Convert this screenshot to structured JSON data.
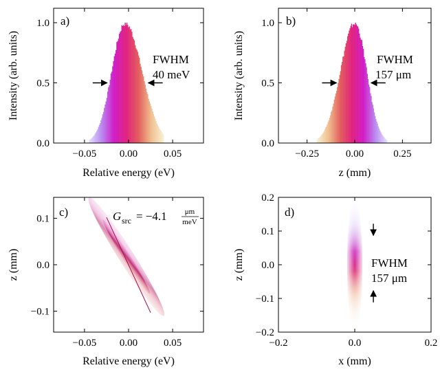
{
  "chart_data": [
    {
      "panel": "a)",
      "type": "bar",
      "xlabel": "Relative energy (eV)",
      "ylabel": "Intensity (arb. units)",
      "xlim": [
        -0.085,
        0.085
      ],
      "ylim": [
        0,
        1.12
      ],
      "xticks": [
        -0.05,
        0.0,
        0.05
      ],
      "xtick_labels": [
        "−0.05",
        "0.00",
        "0.05"
      ],
      "yticks": [
        0.0,
        0.5,
        1.0
      ],
      "ytick_labels": [
        "0.0",
        "0.5",
        "1.0"
      ],
      "annotation": [
        "FWHM",
        "40 meV"
      ],
      "fwhm_left": -0.022,
      "fwhm_right": 0.02,
      "fwhm_level": 0.5,
      "profile": {
        "center": -0.004,
        "peak": 1.0,
        "sigma_left": 0.015,
        "sigma_right": 0.019,
        "xmin": -0.045,
        "xmax": 0.04
      },
      "gradient_colors": [
        "#e6e0ff",
        "#b98cf0",
        "#d01ec8",
        "#e1237e",
        "#e3605d",
        "#f0c090",
        "#f6f2d5"
      ]
    },
    {
      "panel": "b)",
      "type": "bar",
      "xlabel": "z (mm)",
      "ylabel": "Intensity (arb. units)",
      "xlim": [
        -0.4,
        0.4
      ],
      "ylim": [
        0,
        1.12
      ],
      "xticks": [
        -0.25,
        0.0,
        0.25
      ],
      "xtick_labels": [
        "−0.25",
        "0.00",
        "0.25"
      ],
      "yticks": [
        0.0,
        0.5,
        1.0
      ],
      "ytick_labels": [
        "0.0",
        "0.5",
        "1.0"
      ],
      "annotation": [
        "FWHM",
        "157 μm"
      ],
      "fwhm_left": -0.085,
      "fwhm_right": 0.075,
      "fwhm_level": 0.5,
      "profile": {
        "center": 0.0,
        "peak": 1.0,
        "sigma_left": 0.075,
        "sigma_right": 0.062,
        "xmin": -0.2,
        "xmax": 0.17
      },
      "gradient_colors": [
        "#f6f2d5",
        "#f0c090",
        "#e3605d",
        "#e1237e",
        "#d01ec8",
        "#b98cf0",
        "#e6e0ff"
      ]
    },
    {
      "panel": "c)",
      "type": "scatter",
      "xlabel": "Relative energy (eV)",
      "ylabel": "z (mm)",
      "xlim": [
        -0.085,
        0.085
      ],
      "ylim": [
        -0.145,
        0.145
      ],
      "xticks": [
        -0.05,
        0.0,
        0.05
      ],
      "xtick_labels": [
        "−0.05",
        "0.00",
        "0.05"
      ],
      "yticks": [
        -0.1,
        0.0,
        0.1
      ],
      "ytick_labels": [
        "−0.1",
        "0.0",
        "0.1"
      ],
      "gradient_label": "G",
      "gradient_subscript": "src",
      "gradient_value": "= −4.1",
      "gradient_unit_num": "μm",
      "gradient_unit_den": "meV",
      "line": {
        "x": [
          -0.025,
          0.025
        ],
        "y": [
          0.102,
          -0.103
        ]
      },
      "cloud": {
        "x": [
          -0.045,
          0.04
        ],
        "y": [
          0.145,
          -0.11
        ]
      }
    },
    {
      "panel": "d)",
      "type": "heatmap",
      "xlabel": "x (mm)",
      "ylabel": "z (mm)",
      "xlim": [
        -0.2,
        0.2
      ],
      "ylim": [
        -0.2,
        0.2
      ],
      "xticks": [
        -0.2,
        0.0,
        0.2
      ],
      "xtick_labels": [
        "−0.2",
        "0.0",
        "0.2"
      ],
      "yticks": [
        -0.2,
        -0.1,
        0.0,
        0.1,
        0.2
      ],
      "ytick_labels": [
        "−0.2",
        "−0.1",
        "0.0",
        "0.1",
        "0.2"
      ],
      "annotation": [
        "FWHM",
        "157 μm"
      ],
      "fwhm_top": 0.085,
      "fwhm_bottom": -0.075,
      "spot": {
        "x_center": 0.0,
        "x_halfwidth": 0.02,
        "z_top": 0.2,
        "z_bottom": -0.2
      }
    }
  ]
}
